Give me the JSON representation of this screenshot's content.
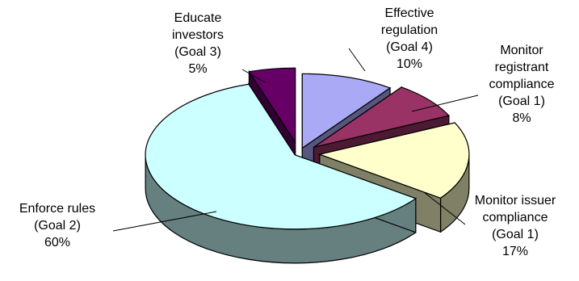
{
  "chart_data": {
    "type": "pie",
    "title": "",
    "three_d": true,
    "exploded": true,
    "slices": [
      {
        "name": "Effective regulation (Goal 4)",
        "value": 10,
        "color": "#a9a9f5",
        "side_color": "#56567f",
        "label_lines": [
          "Effective",
          "regulation",
          "(Goal 4)",
          "10%"
        ]
      },
      {
        "name": "Monitor registrant compliance (Goal 1)",
        "value": 8,
        "color": "#993366",
        "side_color": "#4d1a33",
        "label_lines": [
          "Monitor",
          "registrant",
          "compliance",
          "(Goal 1)",
          "8%"
        ]
      },
      {
        "name": "Monitor issuer compliance (Goal 1)",
        "value": 17,
        "color": "#ffffcc",
        "side_color": "#808066",
        "label_lines": [
          "Monitor issuer",
          "compliance",
          "(Goal 1)",
          "17%"
        ]
      },
      {
        "name": "Enforce rules (Goal 2)",
        "value": 60,
        "color": "#ccffff",
        "side_color": "#668080",
        "label_lines": [
          "Enforce rules",
          "(Goal 2)",
          "60%"
        ]
      },
      {
        "name": "Educate investors (Goal 3)",
        "value": 5,
        "color": "#660066",
        "side_color": "#330033",
        "label_lines": [
          "Educate",
          "investors",
          "(Goal 3)",
          "5%"
        ]
      }
    ]
  }
}
